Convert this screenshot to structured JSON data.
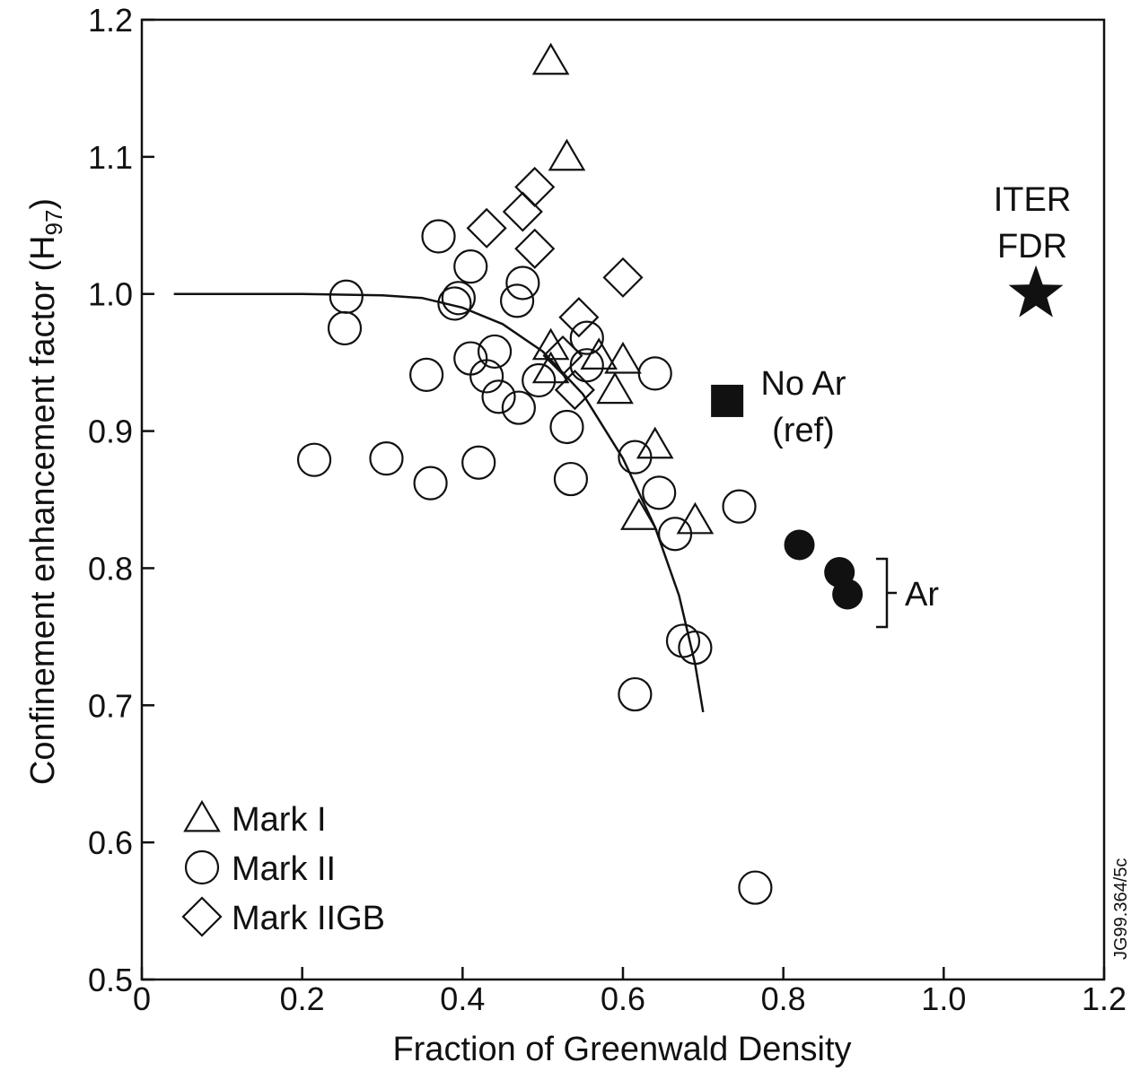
{
  "chart_data": {
    "type": "scatter",
    "xlabel": "Fraction of Greenwald Density",
    "ylabel_main": "Confinement enhancement factor (H",
    "ylabel_sub": "97",
    "ylabel_close": ")",
    "xlim": [
      0,
      1.2
    ],
    "ylim": [
      0.5,
      1.2
    ],
    "x_ticks": [
      "0",
      "0.2",
      "0.4",
      "0.6",
      "0.8",
      "1.0",
      "1.2"
    ],
    "x_tick_values": [
      0,
      0.2,
      0.4,
      0.6,
      0.8,
      1.0,
      1.2
    ],
    "y_ticks": [
      "0.5",
      "0.6",
      "0.7",
      "0.8",
      "0.9",
      "1.0",
      "1.1",
      "1.2"
    ],
    "y_tick_values": [
      0.5,
      0.6,
      0.7,
      0.8,
      0.9,
      1.0,
      1.1,
      1.2
    ],
    "grid": false,
    "legend_position": "bottom-left",
    "series": [
      {
        "name": "Mark I",
        "marker": "triangle-open",
        "points": [
          [
            0.51,
            1.17
          ],
          [
            0.53,
            1.1
          ],
          [
            0.51,
            0.962
          ],
          [
            0.51,
            0.945
          ],
          [
            0.57,
            0.955
          ],
          [
            0.6,
            0.952
          ],
          [
            0.59,
            0.93
          ],
          [
            0.64,
            0.89
          ],
          [
            0.62,
            0.838
          ],
          [
            0.69,
            0.835
          ]
        ]
      },
      {
        "name": "Mark II",
        "marker": "circle-open",
        "points": [
          [
            0.255,
            0.998
          ],
          [
            0.253,
            0.975
          ],
          [
            0.37,
            1.042
          ],
          [
            0.41,
            1.02
          ],
          [
            0.395,
            0.997
          ],
          [
            0.39,
            0.993
          ],
          [
            0.475,
            1.008
          ],
          [
            0.468,
            0.995
          ],
          [
            0.355,
            0.941
          ],
          [
            0.41,
            0.953
          ],
          [
            0.44,
            0.958
          ],
          [
            0.43,
            0.94
          ],
          [
            0.445,
            0.925
          ],
          [
            0.47,
            0.917
          ],
          [
            0.495,
            0.937
          ],
          [
            0.53,
            0.903
          ],
          [
            0.555,
            0.968
          ],
          [
            0.555,
            0.948
          ],
          [
            0.64,
            0.942
          ],
          [
            0.615,
            0.881
          ],
          [
            0.215,
            0.879
          ],
          [
            0.305,
            0.88
          ],
          [
            0.36,
            0.862
          ],
          [
            0.42,
            0.877
          ],
          [
            0.535,
            0.865
          ],
          [
            0.645,
            0.855
          ],
          [
            0.665,
            0.825
          ],
          [
            0.745,
            0.845
          ],
          [
            0.675,
            0.747
          ],
          [
            0.69,
            0.742
          ],
          [
            0.615,
            0.708
          ],
          [
            0.765,
            0.567
          ]
        ]
      },
      {
        "name": "Mark IIGB",
        "marker": "diamond-open",
        "points": [
          [
            0.49,
            1.078
          ],
          [
            0.475,
            1.06
          ],
          [
            0.43,
            1.048
          ],
          [
            0.49,
            1.033
          ],
          [
            0.6,
            1.012
          ],
          [
            0.545,
            0.983
          ],
          [
            0.525,
            0.955
          ],
          [
            0.54,
            0.93
          ]
        ]
      },
      {
        "name": "No Ar (ref)",
        "marker": "square-filled",
        "points": [
          [
            0.73,
            0.922
          ]
        ]
      },
      {
        "name": "Ar",
        "marker": "circle-filled",
        "points": [
          [
            0.82,
            0.817
          ],
          [
            0.87,
            0.797
          ],
          [
            0.88,
            0.781
          ]
        ]
      },
      {
        "name": "ITER FDR",
        "marker": "star-filled",
        "points": [
          [
            1.115,
            1.0
          ]
        ]
      }
    ],
    "fit_curve": {
      "points": [
        [
          0.04,
          1.0
        ],
        [
          0.1,
          1.0
        ],
        [
          0.2,
          1.0
        ],
        [
          0.3,
          0.999
        ],
        [
          0.35,
          0.997
        ],
        [
          0.4,
          0.99
        ],
        [
          0.45,
          0.978
        ],
        [
          0.5,
          0.958
        ],
        [
          0.55,
          0.927
        ],
        [
          0.6,
          0.88
        ],
        [
          0.64,
          0.83
        ],
        [
          0.67,
          0.78
        ],
        [
          0.69,
          0.73
        ],
        [
          0.7,
          0.695
        ]
      ]
    },
    "legend": [
      {
        "marker": "triangle-open",
        "label": "Mark I"
      },
      {
        "marker": "circle-open",
        "label": "Mark II"
      },
      {
        "marker": "diamond-open",
        "label": "Mark IIGB"
      }
    ],
    "annotations": {
      "no_ar_line1": "No Ar",
      "no_ar_line2": "(ref)",
      "ar": "Ar",
      "iter_line1": "ITER",
      "iter_line2": "FDR",
      "figure_id": "JG99.364/5c"
    }
  }
}
